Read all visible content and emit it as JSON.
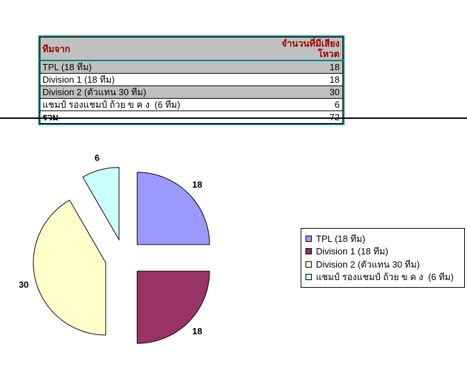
{
  "table": {
    "headers": [
      "ทีมจาก",
      "จำนวนที่มีเสียงโหวต"
    ],
    "rows": [
      {
        "label": "TPL (18 ทีม)",
        "value": "18",
        "shaded": true
      },
      {
        "label": "Division 1 (18 ทีม)",
        "value": "18",
        "shaded": false
      },
      {
        "label": "Division 2 (ตัวแทน 30 ทีม)",
        "value": "30",
        "shaded": true
      },
      {
        "label": "แชมป์ รองแชมป์ ถ้วย ข ค ง  (6 ทีม)",
        "value": "6",
        "shaded": false
      }
    ],
    "total_row": {
      "label": "รวม",
      "value": "72"
    },
    "colors": {
      "border": "#008080",
      "header_bg": "#C0C0C0",
      "header_text": "#990000",
      "shaded_row_bg": "#C0C0C0",
      "row_bg": "#FFFFFF",
      "grid": "#000000"
    }
  },
  "chart_data": {
    "type": "pie",
    "title": "",
    "categories": [
      "TPL (18 ทีม)",
      "Division 1 (18 ทีม)",
      "Division 2 (ตัวแทน 30 ทีม)",
      "แชมป์ รองแชมป์ ถ้วย ข ค ง  (6 ทีม)"
    ],
    "values": [
      18,
      18,
      30,
      6
    ],
    "data_labels": [
      "18",
      "18",
      "30",
      "6"
    ],
    "total": 72,
    "colors": [
      "#9999FF",
      "#993366",
      "#FFFFCC",
      "#CCFFFF"
    ],
    "slice_stroke": "#000000",
    "legend_position": "right",
    "start_angle_deg": 0,
    "direction": "clockwise",
    "exploded": true
  }
}
